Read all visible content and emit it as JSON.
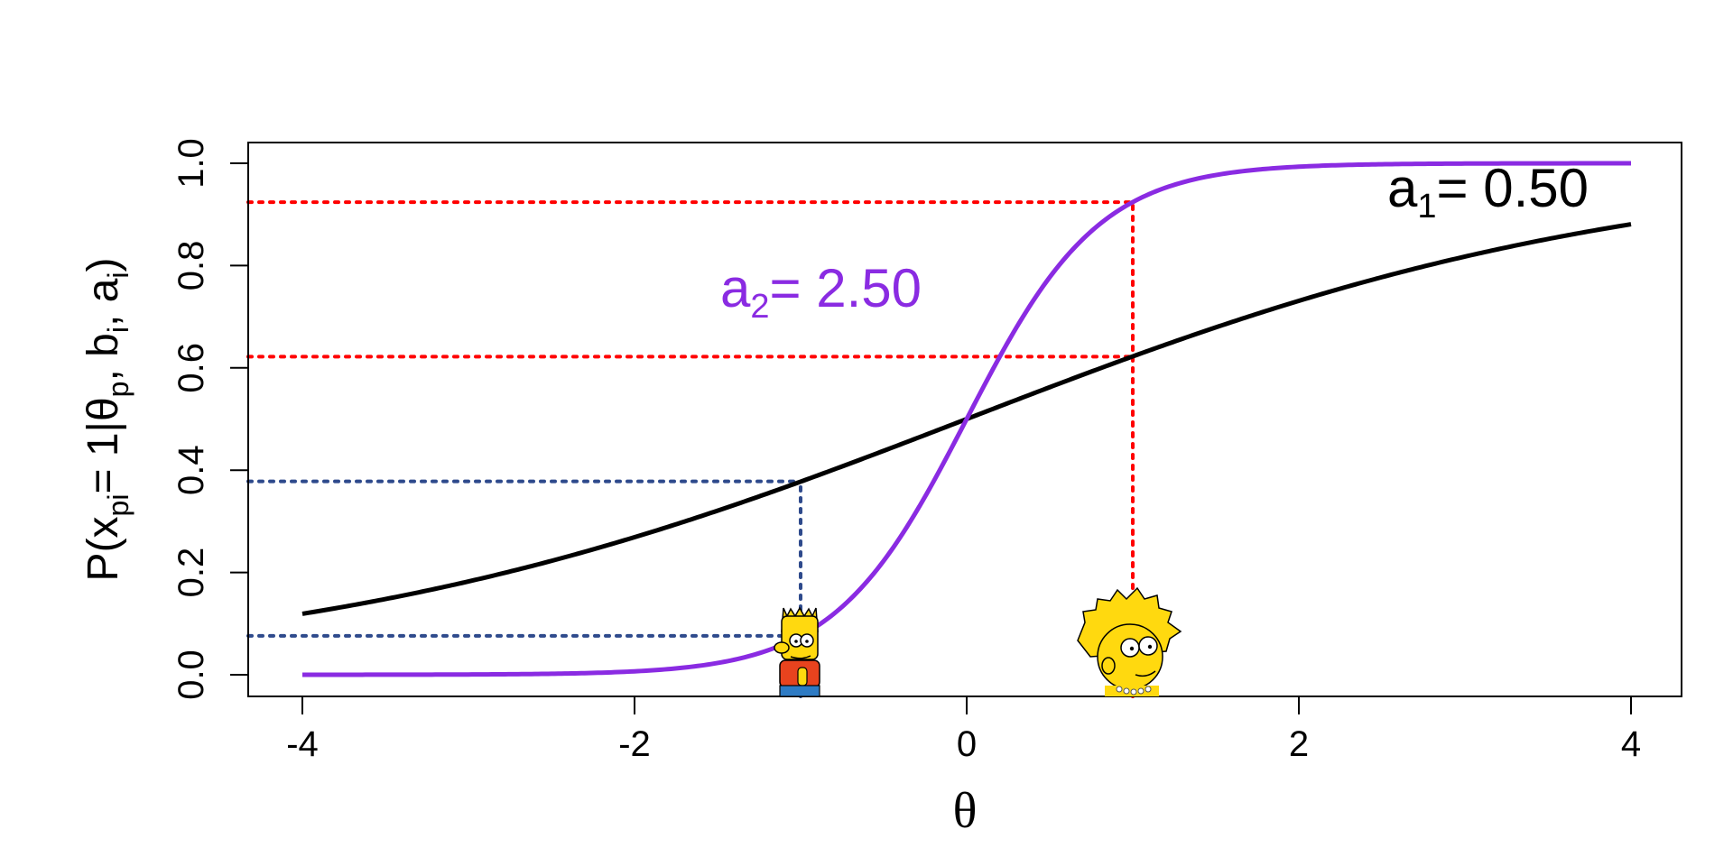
{
  "chart_data": {
    "type": "line",
    "xlabel": "θ",
    "ylabel": {
      "prefix": "P(x",
      "sub1": "pi",
      "mid1": "= 1|θ",
      "sub2": "p",
      "mid2": ", b",
      "sub3": "i",
      "mid3": ", a",
      "sub4": "i",
      "suffix": ")"
    },
    "xlim": [
      -4,
      4
    ],
    "ylim": [
      0,
      1
    ],
    "x_ticks": [
      -4,
      -2,
      0,
      2,
      4
    ],
    "x_tick_labels": [
      "-4",
      "-2",
      "0",
      "2",
      "4"
    ],
    "y_ticks": [
      0,
      0.2,
      0.4,
      0.6,
      0.8,
      1.0
    ],
    "y_tick_labels": [
      "0.0",
      "0.2",
      "0.4",
      "0.6",
      "0.8",
      "1.0"
    ],
    "grid": false,
    "series": [
      {
        "name": "a1 = 0.50",
        "label_main": "a",
        "label_sub": "1",
        "label_rest": "= 0.50",
        "color": "#000000",
        "discrimination": 0.5,
        "difficulty": 0,
        "x": [
          -4,
          -3,
          -2,
          -1,
          0,
          1,
          2,
          3,
          4
        ],
        "values": [
          0.119,
          0.182,
          0.269,
          0.378,
          0.5,
          0.622,
          0.731,
          0.818,
          0.881
        ]
      },
      {
        "name": "a2 = 2.50",
        "label_main": "a",
        "label_sub": "2",
        "label_rest": "= 2.50",
        "color": "#8a2be2",
        "discrimination": 2.5,
        "difficulty": 0,
        "x": [
          -4,
          -3,
          -2,
          -1,
          0,
          1,
          2,
          3,
          4
        ],
        "values": [
          4.54e-05,
          0.00055,
          0.0067,
          0.076,
          0.5,
          0.924,
          0.9933,
          0.99945,
          0.99995
        ]
      }
    ],
    "reference_lines": [
      {
        "theta": -1,
        "color": "#2e4a8c",
        "levels": [
          0.378,
          0.076
        ]
      },
      {
        "theta": 1,
        "color": "#ff0000",
        "levels": [
          0.622,
          0.924
        ]
      }
    ],
    "markers": [
      {
        "theta": -1,
        "icon": "bart-simpson-icon"
      },
      {
        "theta": 1,
        "icon": "lisa-simpson-icon"
      }
    ]
  }
}
